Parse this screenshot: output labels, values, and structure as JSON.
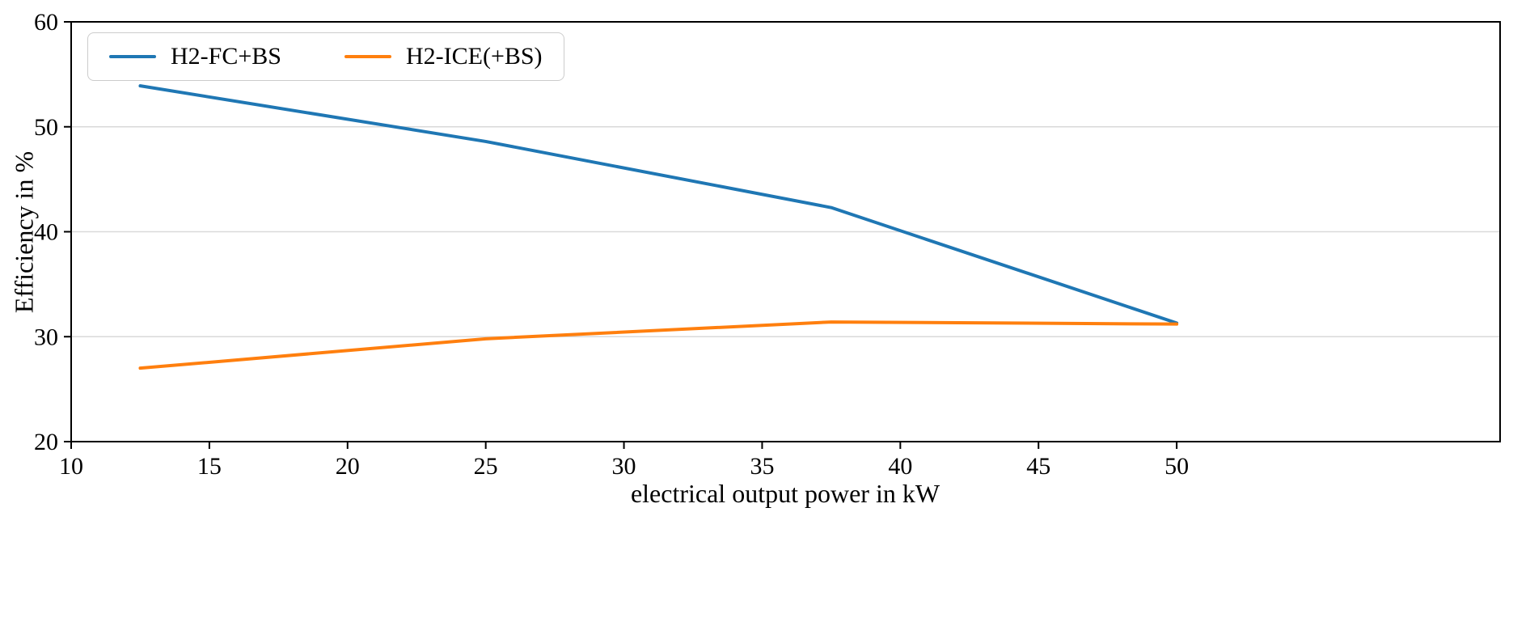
{
  "figure": {
    "background": "#ffffff"
  },
  "chart_data": {
    "type": "line",
    "title": "",
    "xlabel": "electrical output power in kW",
    "ylabel": "Efficiency in %",
    "x": [
      12.5,
      25,
      37.5,
      50
    ],
    "series": [
      {
        "name": "H2-FC+BS",
        "color": "#1f77b4",
        "values": [
          53.9,
          48.6,
          42.3,
          31.3
        ]
      },
      {
        "name": "H2-ICE(+BS)",
        "color": "#ff7f0e",
        "values": [
          27.0,
          29.8,
          31.4,
          31.2
        ]
      }
    ],
    "xlim": [
      10,
      61.7
    ],
    "ylim": [
      20,
      60
    ],
    "xticks": [
      10,
      15,
      20,
      25,
      30,
      35,
      40,
      45,
      50
    ],
    "yticks": [
      20,
      30,
      40,
      50,
      60
    ],
    "grid": "horizontal",
    "gridlines_y": [
      30,
      40,
      50
    ],
    "legend_position": "upper-left",
    "legend": [
      "H2-FC+BS",
      "H2-ICE(+BS)"
    ]
  },
  "style": {
    "grid_color": "#d9d9d9",
    "axis_color": "#000000",
    "legend_border_color": "#cccccc",
    "line_width": 4
  }
}
